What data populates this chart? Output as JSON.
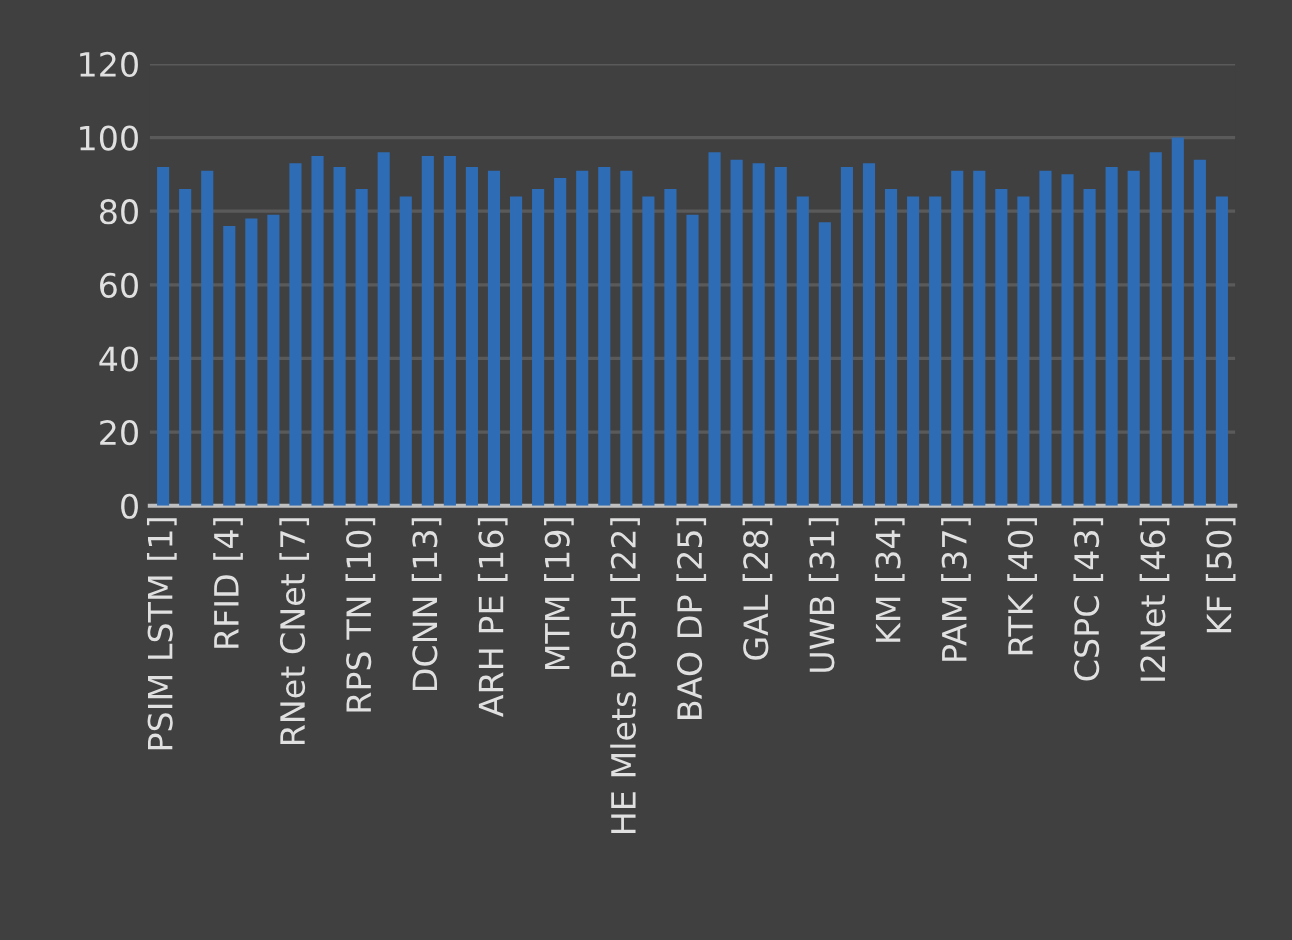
{
  "chart_data": {
    "type": "bar",
    "categories": [
      "PSIM LSTM [1]",
      null,
      null,
      "RFID [4]",
      null,
      null,
      "RNet CNet [7]",
      null,
      null,
      "RPS TN [10]",
      null,
      null,
      "DCNN [13]",
      null,
      null,
      "ARH PE [16]",
      null,
      null,
      "MTM [19]",
      null,
      null,
      "HE Mlets PoSH [22]",
      null,
      null,
      "BAO DP [25]",
      null,
      null,
      "GAL [28]",
      null,
      null,
      "UWB [31]",
      null,
      null,
      "KM [34]",
      null,
      null,
      "PAM [37]",
      null,
      null,
      "RTK [40]",
      null,
      null,
      "CSPC [43]",
      null,
      null,
      "I2Net [46]",
      null,
      null,
      "KF [50]"
    ],
    "values": [
      92,
      86,
      91,
      76,
      78,
      79,
      93,
      95,
      92,
      86,
      96,
      84,
      95,
      95,
      92,
      91,
      84,
      86,
      89,
      91,
      92,
      91,
      84,
      86,
      79,
      96,
      94,
      93,
      92,
      84,
      77,
      92,
      93,
      86,
      84,
      84,
      91,
      91,
      86,
      84,
      91,
      90,
      86,
      92,
      91,
      96,
      100,
      94,
      84
    ],
    "color": "#2e6cb5",
    "ylim": [
      0,
      120
    ],
    "yticks": [
      0,
      20,
      40,
      60,
      80,
      100,
      120
    ],
    "grid": "y"
  }
}
